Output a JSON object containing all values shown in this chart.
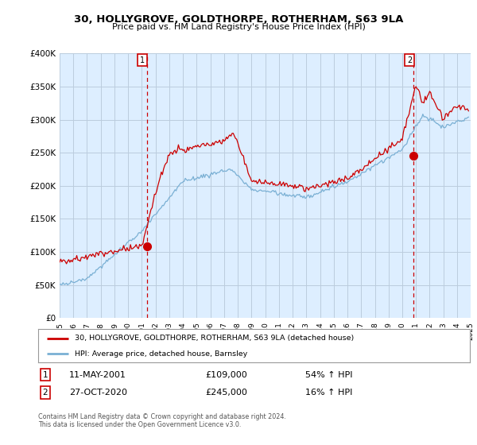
{
  "title": "30, HOLLYGROVE, GOLDTHORPE, ROTHERHAM, S63 9LA",
  "subtitle": "Price paid vs. HM Land Registry's House Price Index (HPI)",
  "ylim": [
    0,
    400000
  ],
  "yticks": [
    0,
    50000,
    100000,
    150000,
    200000,
    250000,
    300000,
    350000,
    400000
  ],
  "ytick_labels": [
    "£0",
    "£50K",
    "£100K",
    "£150K",
    "£200K",
    "£250K",
    "£300K",
    "£350K",
    "£400K"
  ],
  "sale1_x": 2001.36,
  "sale1_y": 109000,
  "sale2_x": 2020.82,
  "sale2_y": 245000,
  "legend_line1": "30, HOLLYGROVE, GOLDTHORPE, ROTHERHAM, S63 9LA (detached house)",
  "legend_line2": "HPI: Average price, detached house, Barnsley",
  "anno1_date": "11-MAY-2001",
  "anno1_price": "£109,000",
  "anno1_hpi": "54% ↑ HPI",
  "anno2_date": "27-OCT-2020",
  "anno2_price": "£245,000",
  "anno2_hpi": "16% ↑ HPI",
  "footnote": "Contains HM Land Registry data © Crown copyright and database right 2024.\nThis data is licensed under the Open Government Licence v3.0.",
  "line_color_red": "#cc0000",
  "line_color_blue": "#7ab0d4",
  "plot_bg_color": "#ddeeff",
  "background_color": "#ffffff",
  "grid_color": "#bbccdd",
  "dashed_color": "#cc0000",
  "xlim": [
    1995,
    2025
  ],
  "xticks": [
    1995,
    1996,
    1997,
    1998,
    1999,
    2000,
    2001,
    2002,
    2003,
    2004,
    2005,
    2006,
    2007,
    2008,
    2009,
    2010,
    2011,
    2012,
    2013,
    2014,
    2015,
    2016,
    2017,
    2018,
    2019,
    2020,
    2021,
    2022,
    2023,
    2024,
    2025
  ]
}
